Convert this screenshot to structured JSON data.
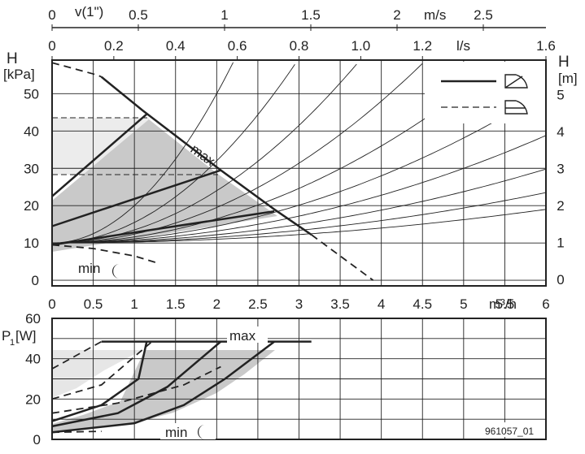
{
  "chart_data": [
    {
      "type": "line",
      "title": "",
      "top_axis_velocity": {
        "label": "v(1\")",
        "unit": "m/s",
        "ticks": [
          "0",
          "0.5",
          "1",
          "1.5",
          "2",
          "2.5"
        ],
        "values": [
          0,
          0.5,
          1,
          1.5,
          2,
          2.5
        ]
      },
      "top_axis_flow_ls": {
        "unit": "l/s",
        "ticks": [
          "0",
          "0.2",
          "0.4",
          "0.6",
          "0.8",
          "1.0",
          "1.2",
          "1.6"
        ],
        "values": [
          0,
          0.2,
          0.4,
          0.6,
          0.8,
          1.0,
          1.2,
          1.6
        ]
      },
      "x_axis": {
        "unit": "m³/h",
        "ticks": [
          "0",
          "0.5",
          "1",
          "1.5",
          "2",
          "2.5",
          "3",
          "3.5",
          "4",
          "4.5",
          "5",
          "5.5",
          "6"
        ],
        "values": [
          0,
          0.5,
          1,
          1.5,
          2,
          2.5,
          3,
          3.5,
          4,
          4.5,
          5,
          5.5,
          6
        ],
        "xlim": [
          0,
          6
        ]
      },
      "y_axis_left": {
        "label": "H",
        "unit": "[kPa]",
        "ticks": [
          "0",
          "10",
          "20",
          "30",
          "40",
          "50"
        ],
        "values": [
          0,
          10,
          20,
          30,
          40,
          50
        ],
        "ylim": [
          -1.5,
          59
        ]
      },
      "y_axis_right": {
        "label": "H",
        "unit": "[m]",
        "ticks": [
          "0",
          "1",
          "2",
          "3",
          "4",
          "5"
        ],
        "values": [
          0,
          1,
          2,
          3,
          4,
          5
        ]
      },
      "annotations": {
        "max": "max",
        "min": "min"
      },
      "legend": {
        "position": "top-right",
        "solid": "solid",
        "dashed": "dashed"
      },
      "series": [
        {
          "style": "dashed",
          "points": [
            [
              0,
              58.3
            ],
            [
              0.55,
              55
            ],
            [
              0.6,
              54.5
            ]
          ]
        },
        {
          "style": "solid",
          "points": [
            [
              0.6,
              54.5
            ],
            [
              1.1,
              45.5
            ],
            [
              2.05,
              29.5
            ],
            [
              2.7,
              19
            ],
            [
              3.15,
              12.2
            ]
          ]
        },
        {
          "style": "dashed",
          "points": [
            [
              3.15,
              12.2
            ],
            [
              3.5,
              6.5
            ],
            [
              3.9,
              0
            ]
          ]
        },
        {
          "style": "solid",
          "points": [
            [
              0,
              22.5
            ],
            [
              1.15,
              44.5
            ]
          ]
        },
        {
          "style": "solid",
          "points": [
            [
              0,
              14.5
            ],
            [
              2.05,
              29.5
            ]
          ]
        },
        {
          "style": "solid",
          "points": [
            [
              0,
              9.5
            ],
            [
              2.7,
              18.5
            ]
          ]
        },
        {
          "style": "dashed",
          "points": [
            [
              0,
              9.5
            ],
            [
              0.5,
              8.5
            ],
            [
              1,
              6.5
            ],
            [
              1.3,
              4.5
            ]
          ]
        }
      ],
      "dashed_reference_lines": [
        44,
        29
      ]
    },
    {
      "type": "line",
      "x_axis": {
        "ticks": [
          "0",
          "0.5",
          "1",
          "1.5",
          "2",
          "2.5",
          "3",
          "3.5",
          "4",
          "4.5",
          "5",
          "5.5",
          "6"
        ],
        "values": [
          0,
          0.5,
          1,
          1.5,
          2,
          2.5,
          3,
          3.5,
          4,
          4.5,
          5,
          5.5,
          6
        ],
        "xlim": [
          0,
          6
        ]
      },
      "y_axis": {
        "label": "P",
        "subscript": "1",
        "unit": "[W]",
        "ticks": [
          "0",
          "20",
          "40",
          "60"
        ],
        "values": [
          0,
          20,
          40,
          60
        ],
        "ylim": [
          0,
          60
        ]
      },
      "annotations": {
        "max": "max",
        "min": "min",
        "code": "961057_01"
      },
      "series": [
        {
          "style": "solid",
          "points": [
            [
              0.6,
              48.5
            ],
            [
              3.15,
              48.5
            ]
          ]
        },
        {
          "style": "dashed",
          "points": [
            [
              0,
              35
            ],
            [
              0.6,
              48.5
            ]
          ]
        },
        {
          "style": "solid",
          "points": [
            [
              0,
              3.5
            ],
            [
              1,
              8
            ],
            [
              1.6,
              17
            ],
            [
              2.1,
              30
            ],
            [
              2.7,
              48.5
            ]
          ]
        },
        {
          "style": "solid",
          "points": [
            [
              0,
              6.5
            ],
            [
              0.8,
              13
            ],
            [
              1.4,
              26
            ],
            [
              2.05,
              48.5
            ]
          ]
        },
        {
          "style": "solid",
          "points": [
            [
              0,
              9
            ],
            [
              0.6,
              17
            ],
            [
              1.05,
              30
            ],
            [
              1.15,
              48.5
            ]
          ]
        },
        {
          "style": "dashed",
          "points": [
            [
              0,
              3.5
            ],
            [
              0.6,
              4
            ]
          ]
        },
        {
          "style": "dashed",
          "points": [
            [
              0,
              20
            ],
            [
              0.6,
              27
            ],
            [
              1.2,
              48
            ]
          ]
        },
        {
          "style": "dashed",
          "points": [
            [
              0,
              13
            ],
            [
              0.8,
              18
            ],
            [
              1.6,
              27
            ],
            [
              2.05,
              36
            ]
          ]
        }
      ]
    }
  ]
}
